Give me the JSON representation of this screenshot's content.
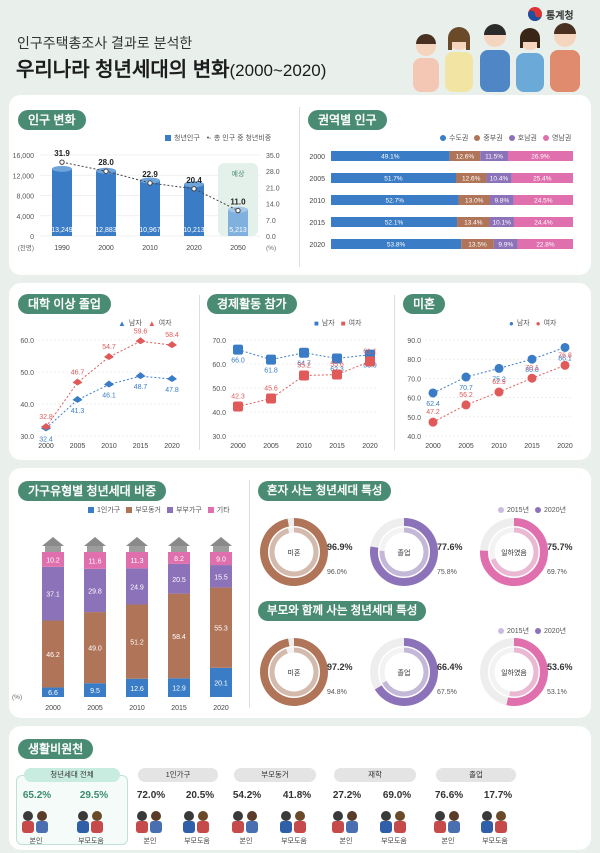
{
  "header": {
    "subtitle": "인구주택총조사 결과로 분석한",
    "title": "우리나라 청년세대의 변화",
    "title_range": "(2000~2020)",
    "agency": "통계청"
  },
  "colors": {
    "blue": "#3a7dc6",
    "red": "#e05a5a",
    "teal": "#4a8b73",
    "brown": "#b07558",
    "purple": "#8c72b8",
    "pink": "#e070ad",
    "lightpurple": "#cbbce0"
  },
  "population": {
    "title": "인구 변화",
    "legend_bar": "청년인구",
    "legend_line": "총 인구 중 청년비중",
    "left_unit": "(천명)",
    "right_unit": "(%)",
    "forecast_label": "예상",
    "chart_data": {
      "type": "bar",
      "categories": [
        "1990",
        "2000",
        "2010",
        "2020",
        "2050"
      ],
      "values": [
        13249,
        12883,
        10967,
        10213,
        5213
      ],
      "value_labels": [
        "13,249",
        "12,883",
        "10,967",
        "10,213",
        "5,213"
      ],
      "share": [
        31.9,
        28.0,
        22.9,
        20.4,
        11.0
      ],
      "share_labels": [
        "31.9",
        "28.0",
        "22.9",
        "20.4",
        "11.0"
      ],
      "ylim": [
        0,
        16000
      ],
      "y2lim": [
        0,
        35
      ],
      "yticks": [
        "16,000",
        "12,000",
        "8,000",
        "4,000",
        "0"
      ],
      "y2ticks": [
        "35.0",
        "28.0",
        "21.0",
        "14.0",
        "7.0",
        "0.0"
      ]
    }
  },
  "regional": {
    "title": "권역별 인구",
    "legend": [
      "수도권",
      "중부권",
      "호남권",
      "영남권"
    ],
    "chart_data": {
      "type": "bar",
      "categories": [
        "2000",
        "2005",
        "2010",
        "2015",
        "2020"
      ],
      "series": [
        {
          "name": "수도권",
          "values": [
            49.1,
            51.7,
            52.7,
            52.1,
            53.8
          ]
        },
        {
          "name": "중부권",
          "values": [
            12.6,
            12.6,
            13.0,
            13.4,
            13.5
          ]
        },
        {
          "name": "호남권",
          "values": [
            11.5,
            10.4,
            9.8,
            10.1,
            9.9
          ]
        },
        {
          "name": "영남권",
          "values": [
            26.9,
            25.4,
            24.5,
            24.4,
            22.8
          ]
        }
      ]
    }
  },
  "college": {
    "title": "대학 이상 졸업",
    "legend_m": "남자",
    "legend_f": "여자",
    "chart_data": {
      "type": "line",
      "x": [
        "2000",
        "2005",
        "2010",
        "2015",
        "2020"
      ],
      "ylim": [
        30,
        60
      ],
      "yticks": [
        "60.0",
        "50.0",
        "40.0",
        "30.0"
      ],
      "series": [
        {
          "name": "남자",
          "values": [
            32.4,
            41.3,
            46.1,
            48.7,
            47.8
          ]
        },
        {
          "name": "여자",
          "values": [
            32.8,
            46.7,
            54.7,
            59.6,
            58.4
          ]
        }
      ]
    }
  },
  "econ": {
    "title": "경제활동 참가",
    "legend_m": "남자",
    "legend_f": "여자",
    "chart_data": {
      "type": "line",
      "x": [
        "2000",
        "2005",
        "2010",
        "2015",
        "2020"
      ],
      "ylim": [
        30,
        70
      ],
      "yticks": [
        "70.0",
        "60.0",
        "50.0",
        "40.0",
        "30.0"
      ],
      "series": [
        {
          "name": "남자",
          "values": [
            66.0,
            61.8,
            64.7,
            62.3,
            63.9
          ]
        },
        {
          "name": "여자",
          "values": [
            42.3,
            45.6,
            55.2,
            55.6,
            61.1
          ]
        }
      ]
    }
  },
  "unmarried": {
    "title": "미혼",
    "legend_m": "남자",
    "legend_f": "여자",
    "chart_data": {
      "type": "line",
      "x": [
        "2000",
        "2005",
        "2010",
        "2015",
        "2020"
      ],
      "ylim": [
        40,
        90
      ],
      "yticks": [
        "90.0",
        "80.0",
        "70.0",
        "60.0",
        "50.0",
        "40.0"
      ],
      "series": [
        {
          "name": "남자",
          "values": [
            62.4,
            70.7,
            75.2,
            80.0,
            86.1
          ]
        },
        {
          "name": "여자",
          "values": [
            47.2,
            56.2,
            62.9,
            70.1,
            76.8
          ]
        }
      ]
    }
  },
  "household": {
    "title": "가구유형별 청년세대 비중",
    "legend": [
      "1인가구",
      "부모동거",
      "부부가구",
      "기타"
    ],
    "unit": "(%)",
    "chart_data": {
      "type": "bar",
      "categories": [
        "2000",
        "2005",
        "2010",
        "2015",
        "2020"
      ],
      "series": [
        {
          "name": "1인가구",
          "values": [
            6.6,
            9.5,
            12.6,
            12.9,
            20.1
          ]
        },
        {
          "name": "부모동거",
          "values": [
            46.2,
            49.0,
            51.2,
            58.4,
            55.3
          ]
        },
        {
          "name": "부부가구",
          "values": [
            37.1,
            29.8,
            24.9,
            20.5,
            15.5
          ]
        },
        {
          "name": "기타",
          "values": [
            10.2,
            11.6,
            11.3,
            8.2,
            9.0
          ]
        }
      ]
    }
  },
  "alone": {
    "title": "혼자 사는 청년세대 특성",
    "legend_2015": "2015년",
    "legend_2020": "2020년",
    "chart_data": {
      "type": "pie",
      "items": [
        {
          "label": "미혼",
          "v2020": 96.9,
          "v2015": 96.0,
          "l2020": "96.9%",
          "l2015": "96.0%"
        },
        {
          "label": "졸업",
          "v2020": 77.6,
          "v2015": 75.8,
          "l2020": "77.6%",
          "l2015": "75.8%"
        },
        {
          "label": "일하였음",
          "v2020": 75.7,
          "v2015": 69.7,
          "l2020": "75.7%",
          "l2015": "69.7%"
        }
      ]
    }
  },
  "parents": {
    "title": "부모와 함께 사는 청년세대 특성",
    "legend_2015": "2015년",
    "legend_2020": "2020년",
    "chart_data": {
      "type": "pie",
      "items": [
        {
          "label": "미혼",
          "v2020": 97.2,
          "v2015": 94.8,
          "l2020": "97.2%",
          "l2015": "94.8%"
        },
        {
          "label": "졸업",
          "v2020": 66.4,
          "v2015": 67.5,
          "l2020": "66.4%",
          "l2015": "67.5%"
        },
        {
          "label": "일하였음",
          "v2020": 53.6,
          "v2015": 53.1,
          "l2020": "53.6%",
          "l2015": "53.1%"
        }
      ]
    }
  },
  "living": {
    "title": "생활비원천",
    "self_label": "본인",
    "parent_label": "부모도움",
    "groups": [
      {
        "name": "청년세대 전체",
        "self": "65.2%",
        "parent": "29.5%"
      },
      {
        "name": "1인가구",
        "self": "72.0%",
        "parent": "20.5%"
      },
      {
        "name": "부모동거",
        "self": "54.2%",
        "parent": "41.8%"
      },
      {
        "name": "재학",
        "self": "27.2%",
        "parent": "69.0%"
      },
      {
        "name": "졸업",
        "self": "76.6%",
        "parent": "17.7%"
      }
    ]
  }
}
